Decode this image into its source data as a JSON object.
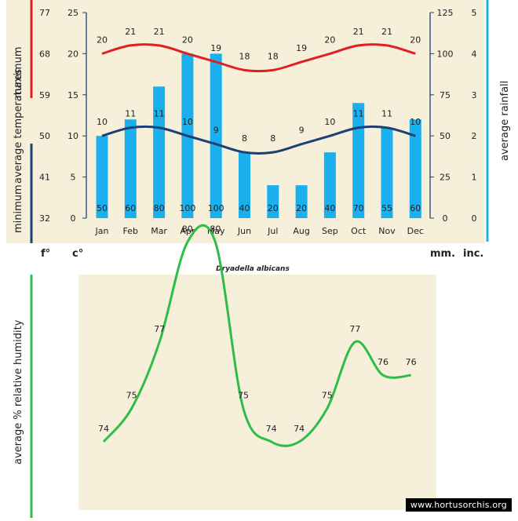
{
  "watermark": "www.hortusorchis.org",
  "species": "Dryadella albicans",
  "colors": {
    "background": "#f6efd9",
    "max_line": "#e02020",
    "min_line": "#1e3f72",
    "rain_bar": "#1ab0ee",
    "humidity_line": "#2ebd48",
    "red_rule": "#e02020",
    "navy_rule": "#1e3f72",
    "cyan_rule": "#1ab0ee",
    "green_rule": "#2ebd48"
  },
  "labels": {
    "maximum": "maximum",
    "minimum": "minimum",
    "average_temperatures": "average  temperatures",
    "average_rainfall": "average rainfall",
    "average_humidity": "average %  relative humidity",
    "unit_f": "f°",
    "unit_c": "c°",
    "unit_mm": "mm.",
    "unit_inc": "inc."
  },
  "chart_data": [
    {
      "type": "bar+line",
      "categories": [
        "Jan",
        "Feb",
        "Mar",
        "Apr",
        "May",
        "Jun",
        "Jul",
        "Aug",
        "Sep",
        "Oct",
        "Nov",
        "Dec"
      ],
      "axes": {
        "fahrenheit_ticks": [
          "32",
          "41",
          "50",
          "59",
          "68",
          "77"
        ],
        "celsius_ticks": [
          "0",
          "5",
          "10",
          "15",
          "20",
          "25"
        ],
        "celsius_range": [
          0,
          25
        ],
        "mm_ticks": [
          "0",
          "25",
          "50",
          "75",
          "100",
          "125"
        ],
        "mm_range": [
          0,
          125
        ],
        "inch_ticks": [
          "0",
          "1",
          "2",
          "3",
          "4",
          "5"
        ]
      },
      "series": [
        {
          "name": "maximum",
          "unit": "c°",
          "values": [
            20,
            21,
            21,
            20,
            19,
            18,
            18,
            19,
            20,
            21,
            21,
            20
          ]
        },
        {
          "name": "minimum",
          "unit": "c°",
          "values": [
            10,
            11,
            11,
            10,
            9,
            8,
            8,
            9,
            10,
            11,
            11,
            10
          ]
        },
        {
          "unit": "mm.",
          "kind": "bar",
          "values": [
            50,
            60,
            80,
            100,
            100,
            40,
            20,
            20,
            40,
            70,
            55,
            60
          ]
        }
      ]
    },
    {
      "type": "line",
      "ylabel": "average %  relative humidity",
      "values": [
        74,
        75,
        77,
        80,
        80,
        75,
        74,
        74,
        75,
        77,
        76,
        76
      ]
    }
  ]
}
